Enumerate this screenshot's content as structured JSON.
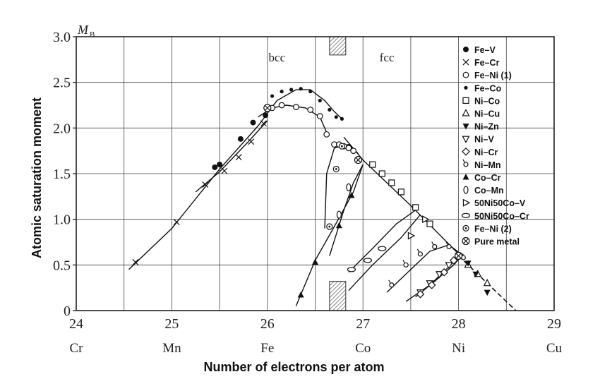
{
  "chart_data": {
    "type": "line",
    "ylabel": "Atomic saturation moment",
    "xlabel": "Number of electrons per atom",
    "y_unit": "M",
    "y_unit_sub": "B",
    "xlim": [
      24,
      29
    ],
    "ylim": [
      0,
      3.0
    ],
    "x_ticks": [
      "24",
      "25",
      "26",
      "27",
      "28",
      "29"
    ],
    "y_ticks": [
      "0",
      "0.5",
      "1.0",
      "1.5",
      "2.0",
      "2.5",
      "3.0"
    ],
    "element_labels": [
      {
        "x": 24,
        "label": "Cr"
      },
      {
        "x": 25,
        "label": "Mn"
      },
      {
        "x": 26,
        "label": "Fe"
      },
      {
        "x": 27,
        "label": "Co"
      },
      {
        "x": 28,
        "label": "Ni"
      },
      {
        "x": 29,
        "label": "Cu"
      }
    ],
    "regions": [
      {
        "label": "bcc",
        "x": 26.1
      },
      {
        "label": "fcc",
        "x": 27.25
      }
    ],
    "transition_band": [
      26.65,
      26.82
    ],
    "grid": true,
    "legend_position": "right",
    "series": [
      {
        "name": "Fe–V",
        "marker": "filled-circle",
        "x": [
          25.45,
          25.5,
          25.72,
          25.85,
          25.98
        ],
        "y": [
          1.57,
          1.6,
          1.88,
          2.06,
          2.14
        ]
      },
      {
        "name": "Fe–Cr",
        "marker": "cross",
        "x": [
          24.62,
          25.05,
          25.35,
          25.55,
          25.7,
          25.83,
          25.96
        ],
        "y": [
          0.53,
          0.97,
          1.38,
          1.53,
          1.68,
          1.85,
          2.05
        ]
      },
      {
        "name": "Fe–Ni (1)",
        "marker": "open-circle",
        "x": [
          26.05,
          26.15,
          26.3,
          26.45,
          26.55,
          26.62,
          26.7,
          26.75,
          26.8,
          26.85,
          26.9
        ],
        "y": [
          2.22,
          2.25,
          2.23,
          2.2,
          2.13,
          1.93,
          1.82,
          1.82,
          1.8,
          1.78,
          1.75
        ]
      },
      {
        "name": "Fe–Co",
        "marker": "small-dot",
        "x": [
          26.05,
          26.15,
          26.25,
          26.35,
          26.45,
          26.55,
          26.65,
          26.72,
          26.78
        ],
        "y": [
          2.35,
          2.4,
          2.42,
          2.43,
          2.4,
          2.3,
          2.2,
          2.12,
          2.1
        ]
      },
      {
        "name": "Ni–Co",
        "marker": "square",
        "x": [
          27.1,
          27.2,
          27.3,
          27.4,
          27.55,
          27.7
        ],
        "y": [
          1.6,
          1.5,
          1.4,
          1.3,
          1.13,
          0.95
        ]
      },
      {
        "name": "Ni–Cu",
        "marker": "triangle-up",
        "x": [
          28.1,
          28.2,
          28.3
        ],
        "y": [
          0.5,
          0.4,
          0.3
        ]
      },
      {
        "name": "Ni–Zn",
        "marker": "triangle-down-filled",
        "x": [
          28.1,
          28.18,
          28.3
        ],
        "y": [
          0.52,
          0.4,
          0.2
        ]
      },
      {
        "name": "Ni–V",
        "marker": "triangle-down",
        "x": [
          27.6,
          27.7,
          27.8,
          27.9,
          28.0
        ],
        "y": [
          0.2,
          0.3,
          0.4,
          0.5,
          0.6
        ]
      },
      {
        "name": "Ni–Cr",
        "marker": "diamond",
        "x": [
          27.6,
          27.72,
          27.85,
          27.95
        ],
        "y": [
          0.18,
          0.28,
          0.42,
          0.55
        ]
      },
      {
        "name": "Ni–Mn",
        "marker": "hook-circle",
        "x": [
          27.3,
          27.45,
          27.6,
          27.75,
          27.9,
          28.05
        ],
        "y": [
          0.28,
          0.5,
          0.62,
          0.7,
          0.7,
          0.58
        ]
      },
      {
        "name": "Co–Cr",
        "marker": "triangle-up-filled",
        "x": [
          26.35,
          26.5,
          26.75,
          26.88
        ],
        "y": [
          0.17,
          0.53,
          0.93,
          1.26
        ]
      },
      {
        "name": "Co–Mn",
        "marker": "tall-oval",
        "x": [
          26.75,
          26.85,
          26.95
        ],
        "y": [
          1.05,
          1.35,
          1.65
        ]
      },
      {
        "name": "50Ni50Co–V",
        "marker": "triangle-right",
        "x": [
          27.5,
          27.65
        ],
        "y": [
          0.82,
          1.0
        ]
      },
      {
        "name": "50Ni50Co–Cr",
        "marker": "wide-oval",
        "x": [
          26.88,
          27.05,
          27.2
        ],
        "y": [
          0.45,
          0.55,
          0.68
        ]
      },
      {
        "name": "Fe–Ni (2)",
        "marker": "dotted-circle",
        "x": [
          26.65,
          26.72,
          26.78
        ],
        "y": [
          0.92,
          1.55,
          1.8
        ]
      },
      {
        "name": "Pure metal",
        "marker": "circle-cross",
        "x": [
          26.0,
          26.95,
          28.0
        ],
        "y": [
          2.22,
          1.65,
          0.6
        ]
      }
    ]
  }
}
